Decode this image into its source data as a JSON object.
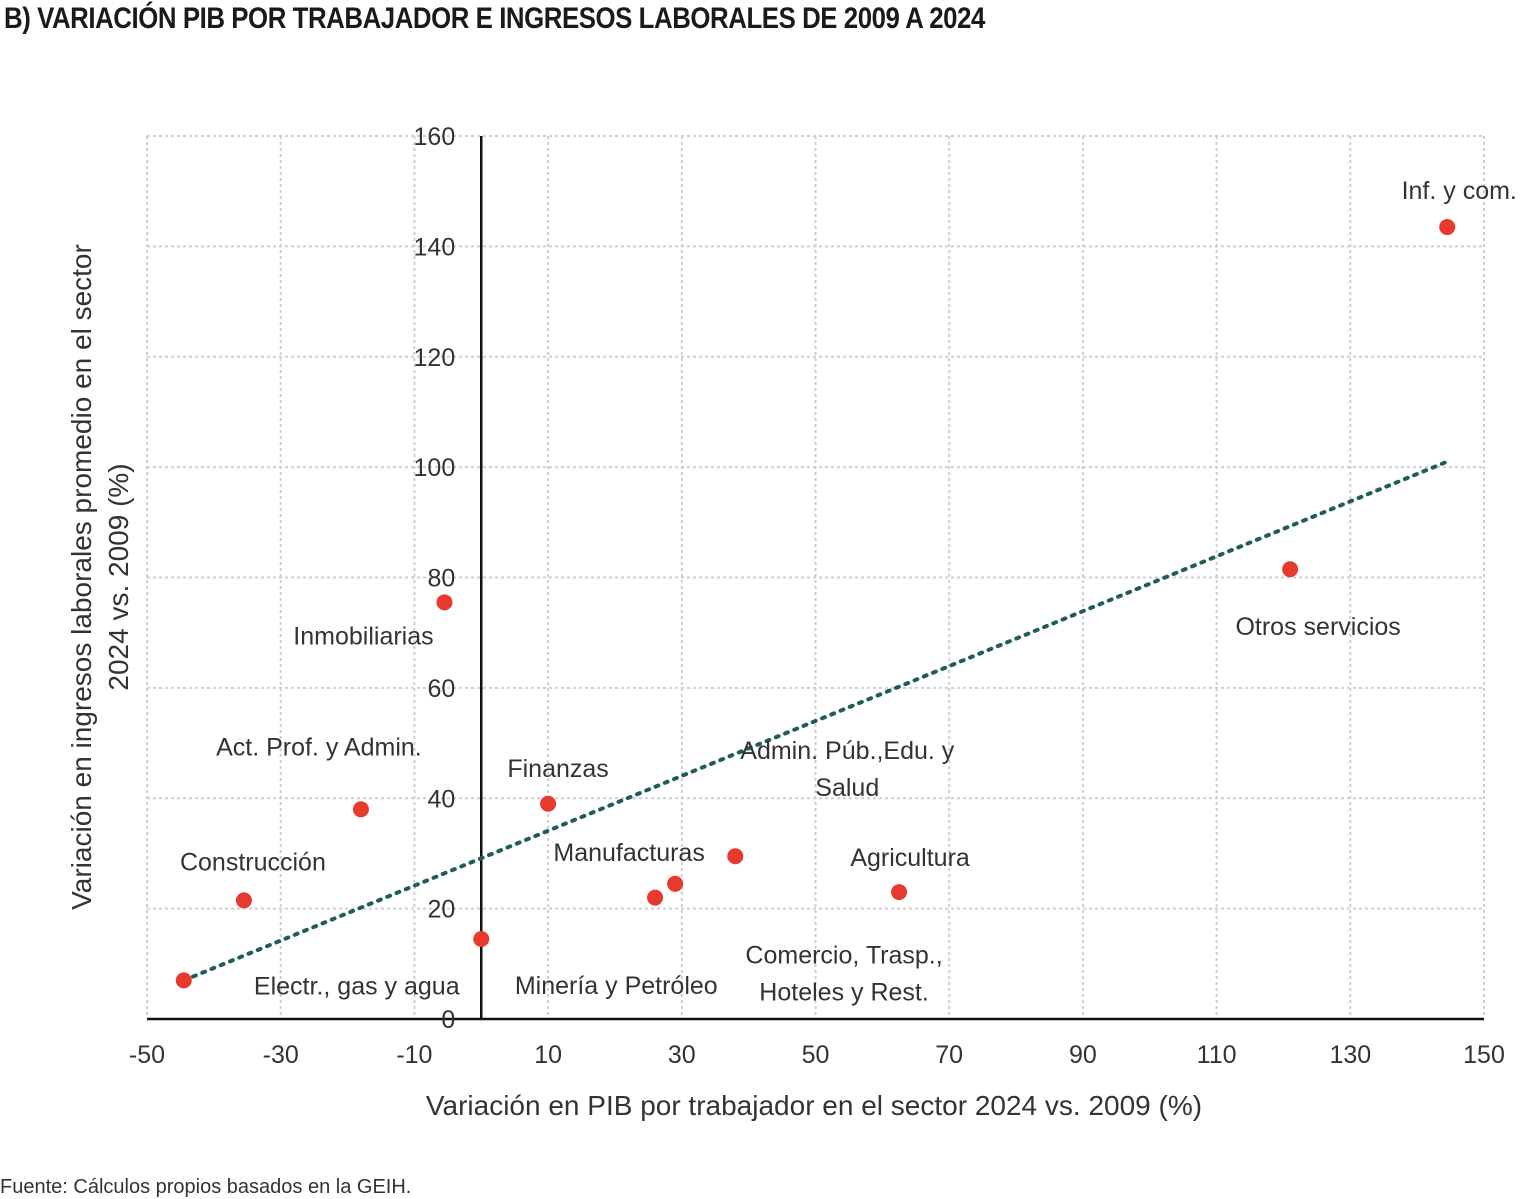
{
  "title": "B) VARIACIÓN PIB POR TRABAJADOR E INGRESOS LABORALES DE 2009 A 2024",
  "source": "Fuente: Cálculos propios basados en la GEIH.",
  "colors": {
    "point": "#e8392d",
    "trendline": "#1f5c5a",
    "grid": "#cfcfcf",
    "axis": "#111111"
  },
  "chart_data": {
    "type": "scatter",
    "xlabel": "Variación en PIB por trabajador en el sector 2024 vs. 2009 (%)",
    "ylabel_lines": [
      "Variación en ingresos laborales promedio en el sector",
      "2024 vs. 2009 (%)"
    ],
    "xlim": [
      -50,
      150
    ],
    "ylim": [
      0,
      160
    ],
    "xticks": [
      -50,
      -30,
      -10,
      10,
      30,
      50,
      70,
      90,
      110,
      130,
      150
    ],
    "yticks": [
      0,
      20,
      40,
      60,
      80,
      100,
      120,
      140,
      160
    ],
    "grid": true,
    "points": [
      {
        "label": "Inf. y com.",
        "x": 144.5,
        "y": 143.5
      },
      {
        "label": "Otros servicios",
        "x": 121,
        "y": 81.5
      },
      {
        "label": "Inmobiliarias",
        "x": -5.5,
        "y": 75.5
      },
      {
        "label": "Finanzas",
        "x": 10,
        "y": 39
      },
      {
        "label": "Act. Prof. y Admin.",
        "x": -18,
        "y": 38
      },
      {
        "label": "Admin. Púb.,Edu. y Salud",
        "label_lines": [
          "Admin. Púb.,Edu. y",
          "Salud"
        ],
        "x": 38,
        "y": 29.5
      },
      {
        "label": "Manufacturas",
        "x": 29,
        "y": 24.5
      },
      {
        "label": "Agricultura",
        "x": 62.5,
        "y": 23
      },
      {
        "label": "Comercio, Trasp., Hoteles y Rest.",
        "label_lines": [
          "Comercio, Trasp.,",
          "Hoteles y Rest."
        ],
        "x": 26,
        "y": 22
      },
      {
        "label": "Construcción",
        "x": -35.5,
        "y": 21.5
      },
      {
        "label": "Minería y Petróleo",
        "x": 0,
        "y": 14.5
      },
      {
        "label": "Electr., gas y agua",
        "x": -44.5,
        "y": 7
      }
    ],
    "trendline": {
      "x0": -44.5,
      "y0": 7,
      "x1": 144.5,
      "y1": 101
    }
  }
}
